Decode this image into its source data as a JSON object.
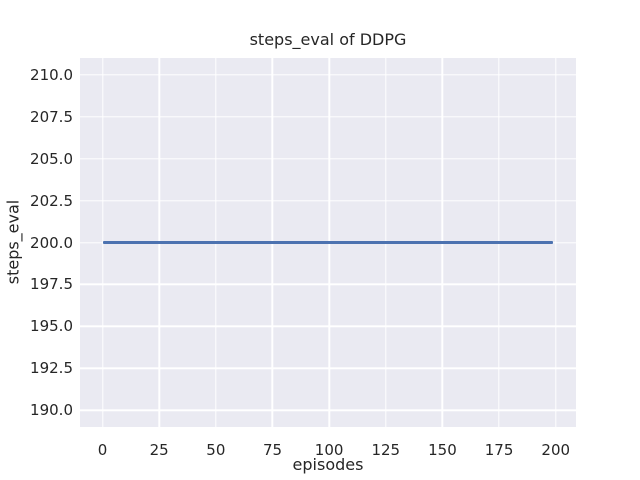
{
  "figure": {
    "title": "steps_eval of DDPG",
    "xlabel": "episodes",
    "ylabel": "steps_eval"
  },
  "chart_data": {
    "type": "line",
    "title": "steps_eval of DDPG",
    "xlabel": "episodes",
    "ylabel": "steps_eval",
    "series": [
      {
        "name": "DDPG steps_eval",
        "x": [
          0,
          199
        ],
        "y": [
          200,
          200
        ],
        "constant_value": 200,
        "color": "#4c72b0"
      }
    ],
    "xlim": [
      -9.95,
      208.95
    ],
    "ylim": [
      189,
      211
    ],
    "xticks": [
      0,
      25,
      50,
      75,
      100,
      125,
      150,
      175,
      200
    ],
    "xtick_labels": [
      "0",
      "25",
      "50",
      "75",
      "100",
      "125",
      "150",
      "175",
      "200"
    ],
    "yticks": [
      190,
      192.5,
      195,
      197.5,
      200,
      202.5,
      205,
      207.5,
      210
    ],
    "ytick_labels": [
      "190.0",
      "192.5",
      "195.0",
      "197.5",
      "200.0",
      "202.5",
      "205.0",
      "207.5",
      "210.0"
    ],
    "grid": true,
    "legend": false,
    "style": {
      "figure_bg": "#ffffff",
      "plot_bg": "#eaeaf2",
      "grid_color": "#ffffff",
      "text_color": "#262626",
      "line_color": "#4c72b0"
    }
  }
}
